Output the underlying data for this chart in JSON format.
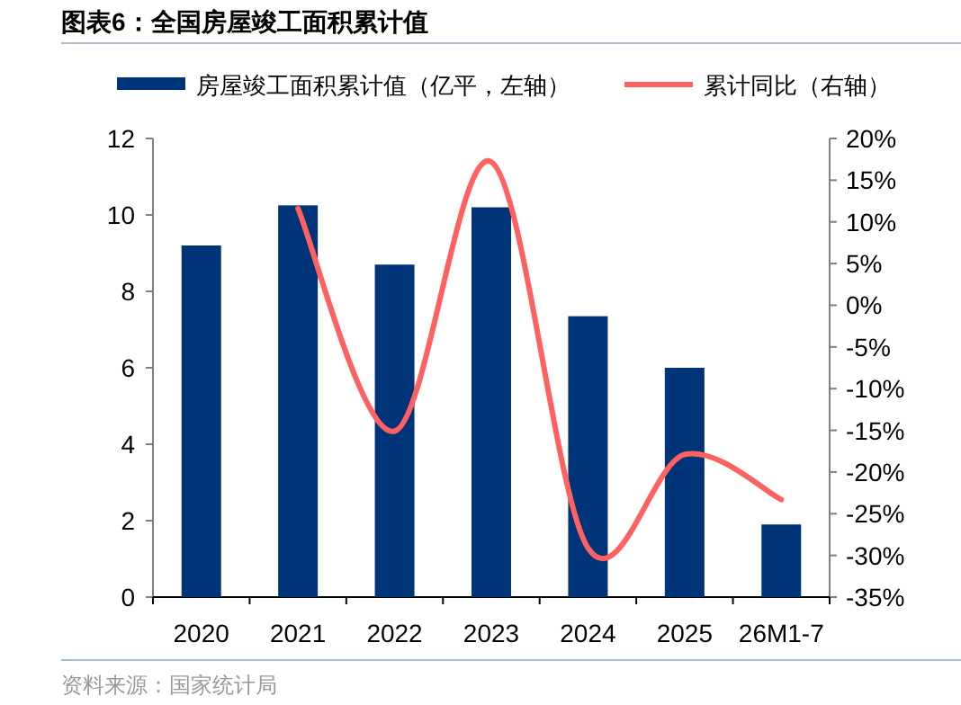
{
  "chart_data": {
    "type": "bar",
    "title": "图表6：全国房屋竣工面积累计值",
    "categories": [
      "2020",
      "2021",
      "2022",
      "2023",
      "2024",
      "2025",
      "26M1-7"
    ],
    "series": [
      {
        "name": "房屋竣工面积累计值（亿平，左轴）",
        "color": "#003478",
        "values": [
          9.2,
          10.25,
          8.7,
          10.2,
          7.35,
          6.0,
          1.9
        ]
      },
      {
        "name": "累计同比（右轴）",
        "type": "line",
        "axis": "y2",
        "color": "#ff6161",
        "values": [
          null,
          11.6,
          -15.1,
          17.2,
          -29.1,
          -17.9,
          -23.3
        ]
      }
    ],
    "ylim": [
      0,
      12
    ],
    "yticks": [
      0,
      2,
      4,
      6,
      8,
      10,
      12
    ],
    "y2lim": [
      -35,
      20
    ],
    "y2ticks": [
      {
        "value": 20,
        "label": "20%"
      },
      {
        "value": 15,
        "label": "15%"
      },
      {
        "value": 10,
        "label": "10%"
      },
      {
        "value": 5,
        "label": "5%"
      },
      {
        "value": 0,
        "label": "0%"
      },
      {
        "value": -5,
        "label": "-5%"
      },
      {
        "value": -10,
        "label": "-10%"
      },
      {
        "value": -15,
        "label": "-15%"
      },
      {
        "value": -20,
        "label": "-20%"
      },
      {
        "value": -25,
        "label": "-25%"
      },
      {
        "value": -30,
        "label": "-30%"
      },
      {
        "value": -35,
        "label": "-35%"
      }
    ],
    "grid": false,
    "legend": "top",
    "line_style": "solid",
    "marker": "none",
    "annotations": [
      "资料来源：国家统计局"
    ]
  }
}
